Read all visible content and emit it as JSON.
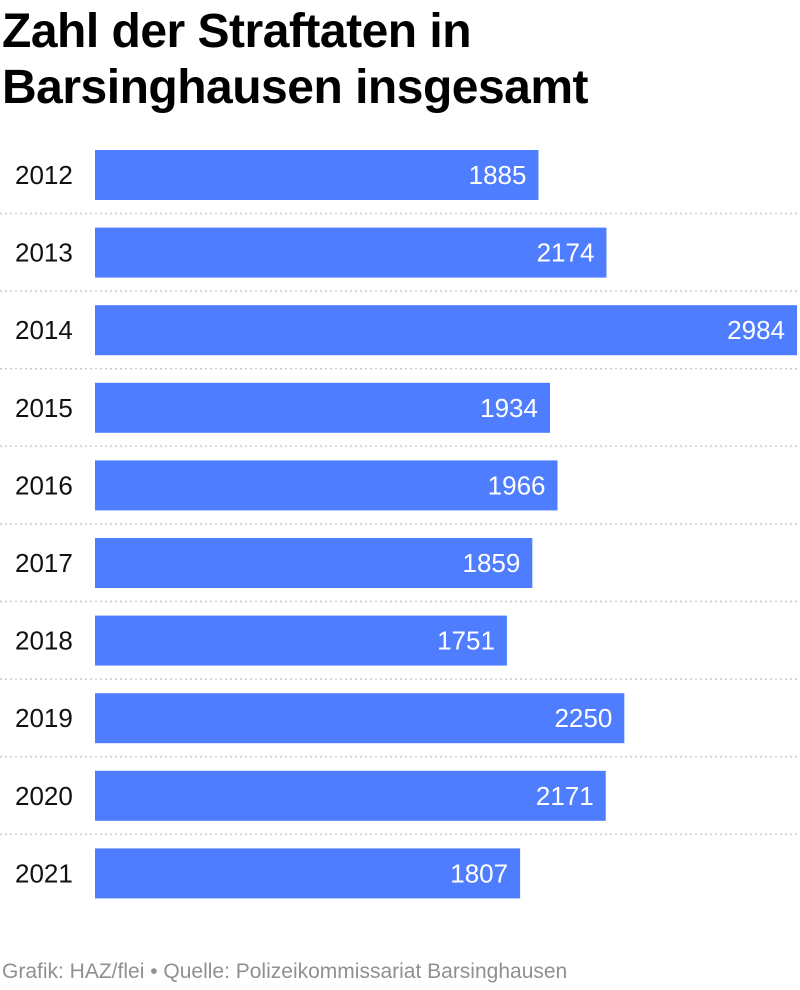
{
  "chart_data": {
    "type": "bar",
    "orientation": "horizontal",
    "title": "Zahl der Straftaten in Barsinghausen insgesamt",
    "categories": [
      "2012",
      "2013",
      "2014",
      "2015",
      "2016",
      "2017",
      "2018",
      "2019",
      "2020",
      "2021"
    ],
    "values": [
      1885,
      2174,
      2984,
      1934,
      1966,
      1859,
      1751,
      2250,
      2171,
      1807
    ],
    "value_labels": [
      "1885",
      "2174",
      "2984",
      "1934",
      "1966",
      "1859",
      "1751",
      "2250",
      "2171",
      "1807"
    ],
    "xlim": [
      0,
      2984
    ],
    "grid": false,
    "legend": "none",
    "data_labels": "inside-end",
    "row_separators": "dotted",
    "bar_color": "#4f7dff",
    "label_color": "#ffffff",
    "separator_color": "#cccccc",
    "source": "Grafik: HAZ/flei • Quelle: Polizeikommissariat Barsinghausen"
  }
}
